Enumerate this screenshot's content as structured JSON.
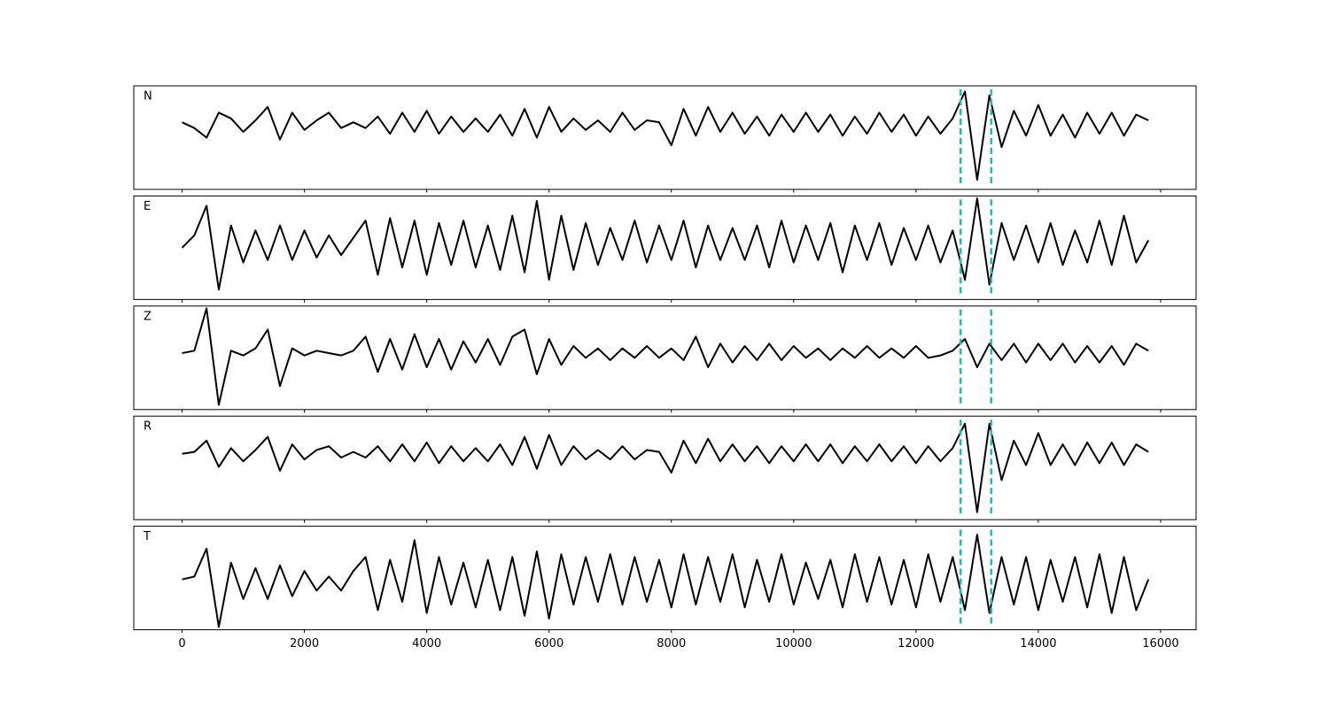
{
  "chart_data": {
    "type": "line",
    "x": [
      0,
      200,
      400,
      600,
      800,
      1000,
      1200,
      1400,
      1600,
      1800,
      2000,
      2200,
      2400,
      2600,
      2800,
      3000,
      3200,
      3400,
      3600,
      3800,
      4000,
      4200,
      4400,
      4600,
      4800,
      5000,
      5200,
      5400,
      5600,
      5800,
      6000,
      6200,
      6400,
      6600,
      6800,
      7000,
      7200,
      7400,
      7600,
      7800,
      8000,
      8200,
      8400,
      8600,
      8800,
      9000,
      9200,
      9400,
      9600,
      9800,
      10000,
      10200,
      10400,
      10600,
      10800,
      11000,
      11200,
      11400,
      11600,
      11800,
      12000,
      12200,
      12400,
      12600,
      12800,
      13000,
      13200,
      13400,
      13600,
      13800,
      14000,
      14200,
      14400,
      14600,
      14800,
      15000,
      15200,
      15400,
      15600,
      15800
    ],
    "xlim": [
      -790,
      16580
    ],
    "xticks": [
      0,
      2000,
      4000,
      6000,
      8000,
      10000,
      12000,
      14000,
      16000
    ],
    "vlines": [
      12730,
      13230
    ],
    "vline_color": "#17bfbf",
    "series": [
      {
        "name": "N",
        "color": "#000000",
        "ylim": [
          -1.7,
          1
        ],
        "values": [
          0.05,
          -0.1,
          -0.35,
          0.3,
          0.15,
          -0.2,
          0.1,
          0.45,
          -0.4,
          0.3,
          -0.15,
          0.1,
          0.3,
          -0.1,
          0.05,
          -0.1,
          0.2,
          -0.25,
          0.3,
          -0.2,
          0.35,
          -0.25,
          0.2,
          -0.2,
          0.15,
          -0.2,
          0.25,
          -0.3,
          0.4,
          -0.35,
          0.45,
          -0.2,
          0.15,
          -0.15,
          0.1,
          -0.2,
          0.3,
          -0.15,
          0.1,
          0.05,
          -0.55,
          0.4,
          -0.3,
          0.45,
          -0.2,
          0.3,
          -0.25,
          0.2,
          -0.3,
          0.25,
          -0.2,
          0.3,
          -0.2,
          0.25,
          -0.3,
          0.2,
          -0.25,
          0.3,
          -0.2,
          0.25,
          -0.3,
          0.2,
          -0.25,
          0.15,
          0.85,
          -1.45,
          0.75,
          -0.6,
          0.35,
          -0.3,
          0.5,
          -0.3,
          0.25,
          -0.35,
          0.3,
          -0.25,
          0.3,
          -0.3,
          0.25,
          0.1
        ]
      },
      {
        "name": "E",
        "color": "#000000",
        "ylim": [
          -1.1,
          1
        ],
        "values": [
          -0.05,
          0.2,
          0.8,
          -0.9,
          0.4,
          -0.35,
          0.3,
          -0.3,
          0.4,
          -0.3,
          0.3,
          -0.25,
          0.2,
          -0.2,
          0.15,
          0.5,
          -0.6,
          0.55,
          -0.45,
          0.5,
          -0.6,
          0.45,
          -0.4,
          0.5,
          -0.45,
          0.4,
          -0.5,
          0.6,
          -0.55,
          0.9,
          -0.7,
          0.6,
          -0.5,
          0.45,
          -0.4,
          0.35,
          -0.3,
          0.5,
          -0.35,
          0.4,
          -0.3,
          0.5,
          -0.45,
          0.4,
          -0.3,
          0.35,
          -0.3,
          0.4,
          -0.45,
          0.5,
          -0.35,
          0.4,
          -0.3,
          0.45,
          -0.55,
          0.4,
          -0.3,
          0.45,
          -0.4,
          0.35,
          -0.3,
          0.4,
          -0.35,
          0.3,
          -0.7,
          0.95,
          -0.8,
          0.45,
          -0.3,
          0.4,
          -0.35,
          0.45,
          -0.4,
          0.3,
          -0.35,
          0.5,
          -0.4,
          0.6,
          -0.35,
          0.1
        ]
      },
      {
        "name": "Z",
        "color": "#000000",
        "ylim": [
          -1.2,
          1
        ],
        "values": [
          0,
          0.05,
          0.95,
          -1.1,
          0.05,
          -0.05,
          0.1,
          0.5,
          -0.7,
          0.1,
          -0.05,
          0.05,
          0,
          -0.05,
          0.05,
          0.35,
          -0.4,
          0.3,
          -0.35,
          0.4,
          -0.3,
          0.3,
          -0.35,
          0.25,
          -0.2,
          0.3,
          -0.25,
          0.35,
          0.5,
          -0.45,
          0.3,
          -0.25,
          0.15,
          -0.1,
          0.1,
          -0.15,
          0.1,
          -0.1,
          0.15,
          -0.1,
          0.1,
          -0.15,
          0.35,
          -0.3,
          0.2,
          -0.2,
          0.15,
          -0.15,
          0.2,
          -0.15,
          0.15,
          -0.1,
          0.1,
          -0.15,
          0.1,
          -0.1,
          0.15,
          -0.1,
          0.1,
          -0.1,
          0.15,
          -0.1,
          -0.05,
          0.05,
          0.3,
          -0.3,
          0.2,
          -0.15,
          0.2,
          -0.2,
          0.2,
          -0.15,
          0.2,
          -0.2,
          0.15,
          -0.2,
          0.15,
          -0.25,
          0.2,
          0.05
        ]
      },
      {
        "name": "R",
        "color": "#000000",
        "ylim": [
          -1.75,
          1
        ],
        "values": [
          0,
          0.05,
          0.35,
          -0.35,
          0.15,
          -0.2,
          0.1,
          0.45,
          -0.45,
          0.25,
          -0.15,
          0.1,
          0.2,
          -0.1,
          0.05,
          -0.1,
          0.2,
          -0.2,
          0.25,
          -0.2,
          0.3,
          -0.25,
          0.2,
          -0.2,
          0.15,
          -0.2,
          0.25,
          -0.3,
          0.45,
          -0.4,
          0.5,
          -0.3,
          0.2,
          -0.15,
          0.1,
          -0.15,
          0.2,
          -0.15,
          0.1,
          0.05,
          -0.5,
          0.35,
          -0.25,
          0.4,
          -0.2,
          0.25,
          -0.2,
          0.2,
          -0.25,
          0.2,
          -0.2,
          0.25,
          -0.2,
          0.25,
          -0.25,
          0.2,
          -0.2,
          0.25,
          -0.2,
          0.2,
          -0.25,
          0.2,
          -0.2,
          0.15,
          0.8,
          -1.55,
          0.8,
          -0.7,
          0.35,
          -0.3,
          0.55,
          -0.3,
          0.25,
          -0.3,
          0.3,
          -0.25,
          0.3,
          -0.3,
          0.25,
          0.05
        ]
      },
      {
        "name": "T",
        "color": "#000000",
        "ylim": [
          -0.85,
          1
        ],
        "values": [
          0.05,
          0.1,
          0.6,
          -0.8,
          0.35,
          -0.3,
          0.25,
          -0.3,
          0.3,
          -0.25,
          0.2,
          -0.15,
          0.1,
          -0.15,
          0.2,
          0.45,
          -0.5,
          0.4,
          -0.35,
          0.75,
          -0.55,
          0.45,
          -0.4,
          0.35,
          -0.45,
          0.4,
          -0.5,
          0.45,
          -0.6,
          0.55,
          -0.65,
          0.5,
          -0.4,
          0.45,
          -0.35,
          0.5,
          -0.4,
          0.45,
          -0.35,
          0.4,
          -0.45,
          0.5,
          -0.4,
          0.45,
          -0.35,
          0.5,
          -0.45,
          0.4,
          -0.35,
          0.5,
          -0.4,
          0.35,
          -0.3,
          0.4,
          -0.45,
          0.5,
          -0.35,
          0.45,
          -0.4,
          0.4,
          -0.45,
          0.5,
          -0.35,
          0.45,
          -0.5,
          0.85,
          -0.55,
          0.45,
          -0.4,
          0.45,
          -0.5,
          0.4,
          -0.35,
          0.45,
          -0.45,
          0.5,
          -0.55,
          0.45,
          -0.5,
          0.05
        ]
      }
    ]
  }
}
